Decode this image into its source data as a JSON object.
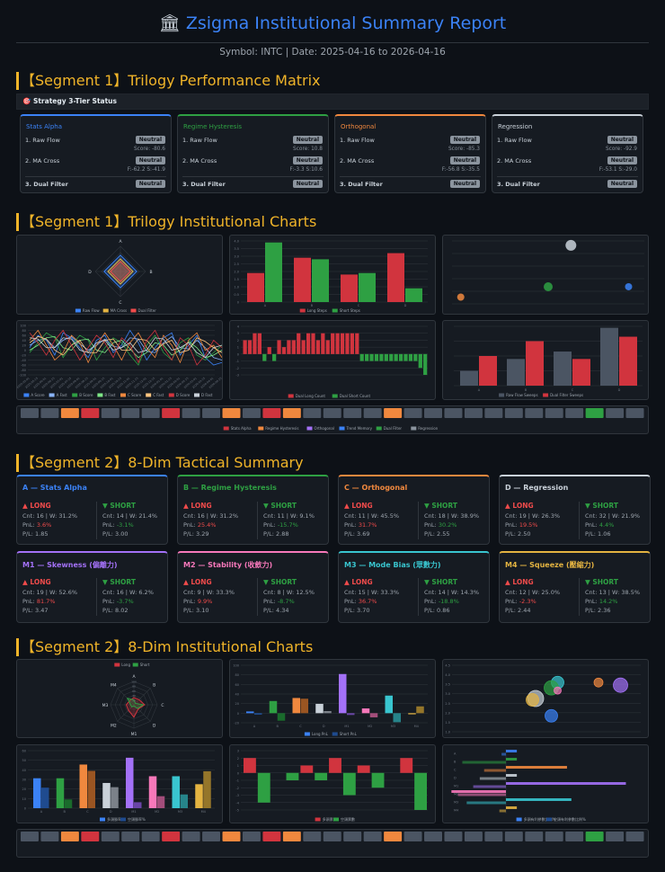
{
  "header": {
    "icon": "bank-icon",
    "title": "Zsigma Institutional Summary Report",
    "subtitle": "Symbol: INTC | Date: 2025-04-16 to 2026-04-16"
  },
  "segments": {
    "s1_matrix": "【Segment 1】Trilogy Performance Matrix",
    "s1_charts": "【Segment 1】Trilogy Institutional Charts",
    "s2_summary": "【Segment 2】8-Dim Tactical Summary",
    "s2_charts": "【Segment 2】8-Dim Institutional Charts"
  },
  "status_bar": "🎯 Strategy 3-Tier Status",
  "tier_labels": {
    "raw": "1. Raw Flow",
    "ma": "2. MA Cross",
    "dual": "3. Dual Filter"
  },
  "tier_cards": [
    {
      "name": "Stats Alpha",
      "color": "#3b82f6",
      "raw": "Neutral",
      "score": "Score: -80.6",
      "ma": "Neutral",
      "fs": "F:-62.2 S:-41.9",
      "dual": "Neutral"
    },
    {
      "name": "Regime Hysteresis",
      "color": "#2ea043",
      "raw": "Neutral",
      "score": "Score: 10.8",
      "ma": "Neutral",
      "fs": "F:-3.3 S:10.6",
      "dual": "Neutral"
    },
    {
      "name": "Orthogonal",
      "color": "#f0883e",
      "raw": "Neutral",
      "score": "Score: -85.3",
      "ma": "Neutral",
      "fs": "F:-56.8 S:-35.5",
      "dual": "Neutral"
    },
    {
      "name": "Regression",
      "color": "#c9d1d9",
      "raw": "Neutral",
      "score": "Score: -92.9",
      "ma": "Neutral",
      "fs": "F:-53.1 S:-29.0",
      "dual": "Neutral"
    }
  ],
  "dim_cards": [
    {
      "name": "A — Stats Alpha",
      "color": "#3b82f6",
      "long": {
        "cnt": "Cnt: 16 | W: 31.2%",
        "pnl": "3.6%",
        "pl": "P/L: 1.85"
      },
      "short": {
        "cnt": "Cnt: 14 | W: 21.4%",
        "pnl": "-3.1%",
        "pl": "P/L: 3.00"
      }
    },
    {
      "name": "B — Regime Hysteresis",
      "color": "#2ea043",
      "long": {
        "cnt": "Cnt: 16 | W: 31.2%",
        "pnl": "25.4%",
        "pl": "P/L: 3.29"
      },
      "short": {
        "cnt": "Cnt: 11 | W: 9.1%",
        "pnl": "-15.7%",
        "pl": "P/L: 2.88"
      }
    },
    {
      "name": "C — Orthogonal",
      "color": "#f0883e",
      "long": {
        "cnt": "Cnt: 11 | W: 45.5%",
        "pnl": "31.7%",
        "pl": "P/L: 3.69"
      },
      "short": {
        "cnt": "Cnt: 18 | W: 38.9%",
        "pnl": "30.2%",
        "pl": "P/L: 2.55"
      }
    },
    {
      "name": "D — Regression",
      "color": "#c9d1d9",
      "long": {
        "cnt": "Cnt: 19 | W: 26.3%",
        "pnl": "19.5%",
        "pl": "P/L: 2.50"
      },
      "short": {
        "cnt": "Cnt: 32 | W: 21.9%",
        "pnl": "4.4%",
        "pl": "P/L: 1.06"
      }
    },
    {
      "name": "M1 — Skewness (偏離力)",
      "color": "#a371f7",
      "long": {
        "cnt": "Cnt: 19 | W: 52.6%",
        "pnl": "81.7%",
        "pl": "P/L: 3.47"
      },
      "short": {
        "cnt": "Cnt: 16 | W: 6.2%",
        "pnl": "-3.7%",
        "pl": "P/L: 8.02"
      }
    },
    {
      "name": "M2 — Stability (收斂力)",
      "color": "#f778ba",
      "long": {
        "cnt": "Cnt: 9 | W: 33.3%",
        "pnl": "9.9%",
        "pl": "P/L: 3.10"
      },
      "short": {
        "cnt": "Cnt: 8 | W: 12.5%",
        "pnl": "-8.7%",
        "pl": "P/L: 4.34"
      }
    },
    {
      "name": "M3 — Mode Bias (眾數力)",
      "color": "#39c5cf",
      "long": {
        "cnt": "Cnt: 15 | W: 33.3%",
        "pnl": "36.7%",
        "pl": "P/L: 3.70"
      },
      "short": {
        "cnt": "Cnt: 14 | W: 14.3%",
        "pnl": "-18.8%",
        "pl": "P/L: 0.86"
      }
    },
    {
      "name": "M4 — Squeeze (壓縮力)",
      "color": "#e3b341",
      "long": {
        "cnt": "Cnt: 12 | W: 25.0%",
        "pnl": "-2.3%",
        "pl": "P/L: 2.44"
      },
      "short": {
        "cnt": "Cnt: 13 | W: 38.5%",
        "pnl": "14.2%",
        "pl": "P/L: 2.36"
      }
    }
  ],
  "dir_labels": {
    "long": "▲ LONG",
    "short": "▼ SHORT",
    "pnl_prefix": "PnL: "
  },
  "chart_data": [
    {
      "id": "trilogy-radar",
      "type": "radar",
      "axes": [
        "A",
        "B",
        "C",
        "D"
      ],
      "range": [
        0,
        4
      ],
      "series": [
        {
          "name": "Raw Flow",
          "color": "#3b82f6",
          "values": [
            2.6,
            2.6,
            2.6,
            2.6
          ]
        },
        {
          "name": "MA Cross",
          "color": "#e3b341",
          "values": [
            2.0,
            2.0,
            2.0,
            2.0
          ]
        },
        {
          "name": "Dual Filter",
          "color": "#f04b4b",
          "values": [
            1.6,
            1.6,
            1.6,
            1.6
          ]
        }
      ]
    },
    {
      "id": "trilogy-bars",
      "type": "bar",
      "categories": [
        "A",
        "B",
        "C",
        "D"
      ],
      "ylim": [
        0,
        4
      ],
      "yticks": [
        "0",
        "0.5",
        "1.0",
        "1.5",
        "2.0",
        "2.5",
        "3.0",
        "3.5",
        "4.0"
      ],
      "series": [
        {
          "name": "Long Steps",
          "color": "#d1343e",
          "values": [
            1.9,
            2.9,
            1.8,
            3.2
          ]
        },
        {
          "name": "Short Steps",
          "color": "#2ea043",
          "values": [
            3.9,
            2.8,
            1.9,
            0.9
          ]
        }
      ]
    },
    {
      "id": "trilogy-bubble",
      "type": "scatter",
      "xlim": [
        -5,
        105
      ],
      "ylim": [
        -5,
        40
      ],
      "points": [
        {
          "x": 0,
          "y": 2,
          "r": 4,
          "color": "#f0883e"
        },
        {
          "x": 63,
          "y": 37,
          "r": 6,
          "color": "#c9d1d9"
        },
        {
          "x": 50,
          "y": 9,
          "r": 5,
          "color": "#2ea043"
        },
        {
          "x": 96,
          "y": 9,
          "r": 4,
          "color": "#3b82f6"
        }
      ]
    },
    {
      "id": "trilogy-lines",
      "type": "line",
      "ylim": [
        -100,
        100
      ],
      "yticks": [
        "100",
        "80",
        "60",
        "40",
        "20",
        "0",
        "-20",
        "-40",
        "-60",
        "-80",
        "-100"
      ],
      "x": [
        "2025-05-01",
        "2025-05-15",
        "2025-06-01",
        "2025-06-15",
        "2025-07-01",
        "2025-07-15",
        "2025-08-01",
        "2025-08-15",
        "2025-09-01",
        "2025-09-15",
        "2025-10-01",
        "2025-10-15",
        "2025-11-01",
        "2025-11-15",
        "2025-12-01",
        "2025-12-15",
        "2026-01-01",
        "2026-01-15",
        "2026-02-01",
        "2026-02-15",
        "2026-03-01",
        "2026-03-15",
        "2026-04-01",
        "2026-04-15"
      ],
      "series": [
        {
          "name": "A Score",
          "color": "#3b82f6",
          "values": [
            10,
            60,
            40,
            -20,
            70,
            50,
            10,
            -30,
            40,
            60,
            -10,
            20,
            80,
            30,
            -40,
            10,
            50,
            70,
            -20,
            20,
            60,
            -30,
            -60,
            -50
          ]
        },
        {
          "name": "A Fast",
          "color": "#8ab4f8",
          "values": [
            20,
            40,
            45,
            10,
            40,
            55,
            25,
            0,
            20,
            45,
            15,
            10,
            50,
            45,
            -5,
            -10,
            30,
            55,
            10,
            5,
            40,
            10,
            -30,
            -40
          ]
        },
        {
          "name": "B Score",
          "color": "#2ea043",
          "values": [
            -10,
            30,
            70,
            50,
            -30,
            20,
            60,
            40,
            -40,
            10,
            50,
            30,
            -20,
            -60,
            20,
            60,
            -10,
            -40,
            30,
            50,
            -20,
            -40,
            -10,
            20
          ]
        },
        {
          "name": "B Fast",
          "color": "#7ee787",
          "values": [
            0,
            20,
            50,
            55,
            10,
            0,
            40,
            45,
            0,
            -10,
            30,
            40,
            5,
            -30,
            -10,
            30,
            20,
            -20,
            0,
            35,
            10,
            -30,
            -20,
            0
          ]
        },
        {
          "name": "C Score",
          "color": "#f0883e",
          "values": [
            40,
            80,
            20,
            -40,
            -10,
            60,
            30,
            -50,
            20,
            70,
            20,
            -40,
            30,
            70,
            10,
            -30,
            60,
            20,
            -50,
            40,
            70,
            0,
            20,
            -30
          ]
        },
        {
          "name": "C Fast",
          "color": "#ffc680",
          "values": [
            30,
            55,
            45,
            0,
            -20,
            20,
            40,
            -10,
            -10,
            40,
            45,
            0,
            0,
            45,
            40,
            0,
            25,
            40,
            -10,
            0,
            50,
            35,
            10,
            -10
          ]
        },
        {
          "name": "D Score",
          "color": "#d1343e",
          "values": [
            70,
            30,
            -20,
            40,
            80,
            20,
            -40,
            10,
            60,
            30,
            -30,
            50,
            20,
            -50,
            40,
            80,
            10,
            -40,
            50,
            20,
            -60,
            -20,
            40,
            10
          ]
        },
        {
          "name": "D Fast",
          "color": "#c9d1d9",
          "values": [
            50,
            45,
            10,
            10,
            50,
            45,
            0,
            -10,
            30,
            40,
            0,
            10,
            30,
            -10,
            0,
            50,
            45,
            0,
            10,
            30,
            -10,
            -30,
            10,
            20
          ]
        }
      ]
    },
    {
      "id": "trilogy-steps",
      "type": "bar",
      "ylim": [
        -3,
        4
      ],
      "yticks": [
        "4",
        "3",
        "2",
        "1",
        "0",
        "-1",
        "-2",
        "-3"
      ],
      "values": [
        2,
        2,
        3,
        3,
        -1,
        1,
        -1,
        2,
        1,
        2,
        2,
        3,
        2,
        3,
        3,
        2,
        3,
        2,
        3,
        3,
        3,
        3,
        3,
        3,
        -1,
        -1,
        -1,
        -1,
        -1,
        -1,
        -1,
        -1,
        -1,
        -1,
        -1,
        -1,
        -2,
        -3
      ],
      "series": [
        {
          "name": "Dual Long Count",
          "color": "#d1343e"
        },
        {
          "name": "Dual Short Count",
          "color": "#2ea043"
        }
      ]
    },
    {
      "id": "trilogy-sweep",
      "type": "bar",
      "categories": [
        "A",
        "B",
        "C",
        "D"
      ],
      "ylim": [
        0,
        4
      ],
      "series": [
        {
          "name": "Raw Flow Sweeps",
          "color": "#4b5563",
          "values": [
            1.0,
            1.8,
            2.3,
            3.9
          ]
        },
        {
          "name": "Dual Filter Sweeps",
          "color": "#d1343e",
          "values": [
            2.0,
            3.0,
            1.8,
            3.3
          ]
        }
      ]
    },
    {
      "id": "trilogy-strip",
      "type": "heatmap",
      "cells": [
        "g",
        "g",
        "o",
        "r",
        "g",
        "g",
        "g",
        "r",
        "g",
        "g",
        "o",
        "g",
        "r",
        "o",
        "g",
        "g",
        "g",
        "g",
        "o",
        "g",
        "g",
        "g",
        "g",
        "g",
        "g",
        "g",
        "g",
        "g",
        "gr",
        "g",
        "g"
      ],
      "legend": [
        "Stats Alpha",
        "Regime Hysteresis",
        "Orthogonal",
        "Trend Memory",
        "Dual Filter",
        "Regression"
      ]
    },
    {
      "id": "dim-radar",
      "type": "radar",
      "axes": [
        "A",
        "B",
        "C",
        "D",
        "M1",
        "M2",
        "M3",
        "M4"
      ],
      "range": [
        0,
        100
      ],
      "yticks": [
        "100",
        "80",
        "60",
        "40",
        "20"
      ],
      "series": [
        {
          "name": "Long",
          "color": "#d1343e",
          "values": [
            31,
            31,
            46,
            26,
            53,
            33,
            33,
            25
          ]
        },
        {
          "name": "Short",
          "color": "#2ea043",
          "values": [
            21,
            9,
            39,
            22,
            6,
            13,
            14,
            39
          ]
        }
      ]
    },
    {
      "id": "dim-pnl",
      "type": "bar",
      "ylim": [
        -20,
        100
      ],
      "yticks": [
        "100",
        "80",
        "60",
        "40",
        "20",
        "0",
        "-20"
      ],
      "categories": [
        "A",
        "B",
        "C",
        "D",
        "M1",
        "M2",
        "M3",
        "M4"
      ],
      "series": [
        {
          "name": "Long PnL",
          "colors": [
            "#3b82f6",
            "#2ea043",
            "#f0883e",
            "#c9d1d9",
            "#a371f7",
            "#f778ba",
            "#39c5cf",
            "#e3b341"
          ],
          "values": [
            3.6,
            25.4,
            31.7,
            19.5,
            81.7,
            9.9,
            36.7,
            -2.3
          ]
        },
        {
          "name": "Short PnL",
          "colors": [
            "#1f4b8f",
            "#1a6b2c",
            "#9a5522",
            "#7b8189",
            "#6a45a8",
            "#a34d7b",
            "#26848a",
            "#95762a"
          ],
          "values": [
            -3.1,
            -15.7,
            30.2,
            4.4,
            -3.7,
            -8.7,
            -18.8,
            14.2
          ]
        }
      ]
    },
    {
      "id": "dim-bubble",
      "type": "scatter",
      "xlim": [
        0,
        60
      ],
      "ylim": [
        0,
        5
      ],
      "yticks": [
        "4.5",
        "4.0",
        "3.5",
        "3.0",
        "2.5",
        "2.0",
        "1.5",
        "1.0"
      ],
      "points": [
        {
          "x": 33,
          "y": 3.7,
          "r": 7,
          "color": "#39c5cf"
        },
        {
          "x": 31,
          "y": 3.3,
          "r": 8,
          "color": "#2ea043"
        },
        {
          "x": 33,
          "y": 3.1,
          "r": 4,
          "color": "#f778ba"
        },
        {
          "x": 46,
          "y": 3.7,
          "r": 5,
          "color": "#f0883e"
        },
        {
          "x": 53,
          "y": 3.5,
          "r": 8,
          "color": "#a371f7"
        },
        {
          "x": 26,
          "y": 2.5,
          "r": 9,
          "color": "#c9d1d9"
        },
        {
          "x": 25,
          "y": 2.4,
          "r": 7,
          "color": "#e3b341"
        },
        {
          "x": 31,
          "y": 1.2,
          "r": 7,
          "color": "#3b82f6"
        }
      ]
    },
    {
      "id": "dim-winrate",
      "type": "bar",
      "ylim": [
        0,
        60
      ],
      "yticks": [
        "60",
        "50",
        "40",
        "30",
        "20",
        "10",
        "0"
      ],
      "categories": [
        "A",
        "B",
        "C",
        "D",
        "M1",
        "M2",
        "M3",
        "M4"
      ],
      "series": [
        {
          "name": "多頭勝率%",
          "colors": [
            "#3b82f6",
            "#2ea043",
            "#f0883e",
            "#c9d1d9",
            "#a371f7",
            "#f778ba",
            "#39c5cf",
            "#e3b341"
          ],
          "values": [
            31.2,
            31.2,
            45.5,
            26.3,
            52.6,
            33.3,
            33.3,
            25.0
          ]
        },
        {
          "name": "空頭勝率%",
          "colors": [
            "#1f4b8f",
            "#1a6b2c",
            "#9a5522",
            "#7b8189",
            "#6a45a8",
            "#a34d7b",
            "#26848a",
            "#95762a"
          ],
          "values": [
            21.4,
            9.1,
            38.9,
            21.9,
            6.2,
            12.5,
            14.3,
            38.5
          ]
        }
      ]
    },
    {
      "id": "dim-votes",
      "type": "bar",
      "ylim": [
        -5,
        3
      ],
      "yticks": [
        "3",
        "2",
        "1",
        "0",
        "-1",
        "-2",
        "-3",
        "-4",
        "-5"
      ],
      "values": [
        2,
        -4,
        0,
        -1,
        1,
        -1,
        2,
        -3,
        1,
        -2,
        0,
        2,
        -5
      ],
      "series": [
        {
          "name": "多頭票數",
          "color": "#d1343e"
        },
        {
          "name": "空頭票數",
          "color": "#2ea043"
        }
      ]
    },
    {
      "id": "dim-hbars",
      "type": "bar",
      "categories": [
        "A",
        "B",
        "C",
        "D",
        "M1",
        "M2",
        "M3",
        "M4"
      ],
      "xlim": [
        -60,
        60
      ],
      "series": [
        {
          "name": "多頭有利參數比例%",
          "colors": [
            "#3b82f6",
            "#2ea043",
            "#f0883e",
            "#c9d1d9",
            "#a371f7",
            "#f778ba",
            "#39c5cf",
            "#e3b341"
          ],
          "values": [
            5,
            5,
            28,
            5,
            55,
            -25,
            30,
            5
          ]
        },
        {
          "name": "空頭有利參數比例%",
          "colors": [
            "#3b82f6",
            "#2ea043",
            "#f0883e",
            "#c9d1d9",
            "#a371f7",
            "#f778ba",
            "#39c5cf",
            "#e3b341"
          ],
          "values": [
            -2,
            -20,
            -10,
            -12,
            -15,
            -22,
            -18,
            -3
          ]
        }
      ]
    },
    {
      "id": "dim-strip",
      "type": "heatmap",
      "cells": [
        "g",
        "g",
        "o",
        "r",
        "g",
        "g",
        "g",
        "r",
        "g",
        "g",
        "o",
        "g",
        "r",
        "o",
        "g",
        "g",
        "g",
        "g",
        "o",
        "g",
        "g",
        "g",
        "g",
        "g",
        "g",
        "g",
        "g",
        "g",
        "gr",
        "g",
        "g"
      ]
    }
  ]
}
